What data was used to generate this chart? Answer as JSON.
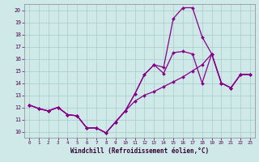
{
  "xlabel": "Windchill (Refroidissement éolien,°C)",
  "bg_color": "#cfe8e8",
  "line_color": "#880088",
  "xlim": [
    -0.5,
    23.5
  ],
  "ylim": [
    9.5,
    20.5
  ],
  "yticks": [
    10,
    11,
    12,
    13,
    14,
    15,
    16,
    17,
    18,
    19,
    20
  ],
  "xticks": [
    0,
    1,
    2,
    3,
    4,
    5,
    6,
    7,
    8,
    9,
    10,
    11,
    12,
    13,
    14,
    15,
    16,
    17,
    18,
    19,
    20,
    21,
    22,
    23
  ],
  "line_wavy_x": [
    0,
    1,
    2,
    3,
    4,
    5,
    6,
    7,
    8,
    9,
    10,
    11,
    12,
    13,
    14,
    15,
    16,
    17,
    18,
    19,
    20,
    21,
    22,
    23
  ],
  "line_wavy_y": [
    12.2,
    11.9,
    11.7,
    12.0,
    11.4,
    11.3,
    10.3,
    10.3,
    9.9,
    10.8,
    11.7,
    13.1,
    14.7,
    15.5,
    14.8,
    16.5,
    16.6,
    16.4,
    14.0,
    16.4,
    14.0,
    13.6,
    14.7,
    14.7
  ],
  "line_peak_x": [
    0,
    1,
    2,
    3,
    4,
    5,
    6,
    7,
    8,
    9,
    10,
    11,
    12,
    13,
    14,
    15,
    16,
    17,
    18,
    19,
    20,
    21,
    22,
    23
  ],
  "line_peak_y": [
    12.2,
    11.9,
    11.7,
    12.0,
    11.4,
    11.3,
    10.3,
    10.3,
    9.9,
    10.8,
    11.7,
    13.1,
    14.7,
    15.5,
    15.3,
    19.3,
    20.2,
    20.2,
    17.8,
    16.4,
    14.0,
    13.6,
    14.7,
    14.7
  ],
  "line_trend_x": [
    0,
    1,
    2,
    3,
    4,
    5,
    6,
    7,
    8,
    9,
    10,
    11,
    12,
    13,
    14,
    15,
    16,
    17,
    18,
    19,
    20,
    21,
    22,
    23
  ],
  "line_trend_y": [
    12.2,
    11.9,
    11.7,
    12.0,
    11.4,
    11.3,
    10.3,
    10.3,
    9.9,
    10.8,
    11.7,
    12.5,
    13.0,
    13.3,
    13.7,
    14.1,
    14.5,
    15.0,
    15.5,
    16.4,
    14.0,
    13.6,
    14.7,
    14.7
  ]
}
